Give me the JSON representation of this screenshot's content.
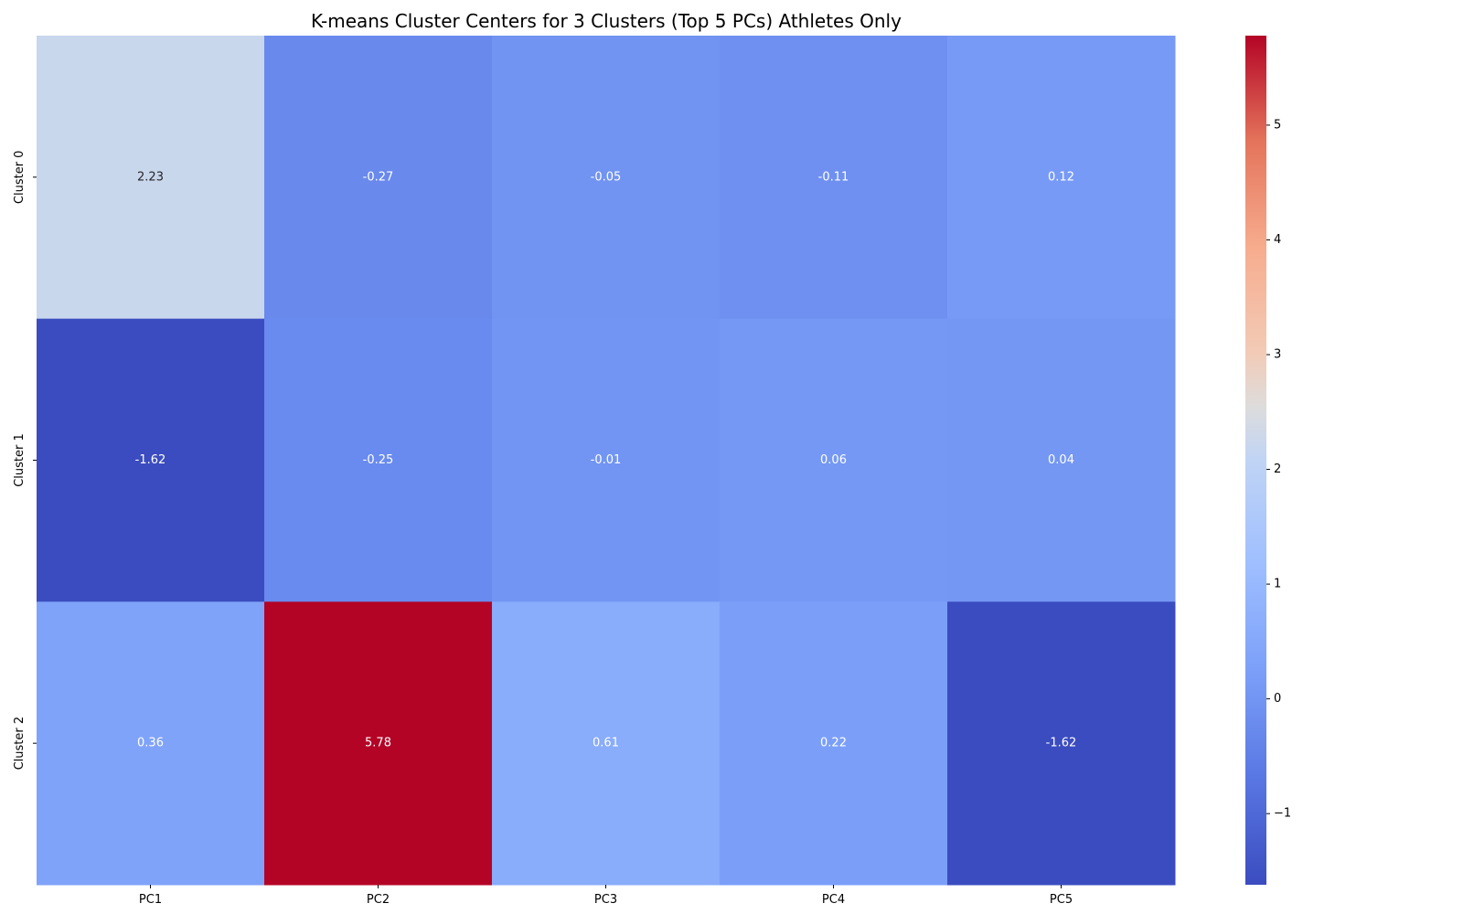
{
  "chart_data": {
    "type": "heatmap",
    "title": "K-means Cluster Centers for 3 Clusters (Top 5 PCs) Athletes Only",
    "xlabel": "",
    "ylabel": "",
    "columns": [
      "PC1",
      "PC2",
      "PC3",
      "PC4",
      "PC5"
    ],
    "rows": [
      "Cluster 0",
      "Cluster 1",
      "Cluster 2"
    ],
    "values": [
      [
        2.23,
        -0.27,
        -0.05,
        -0.11,
        0.12
      ],
      [
        -1.62,
        -0.25,
        -0.01,
        0.06,
        0.04
      ],
      [
        0.36,
        5.78,
        0.61,
        0.22,
        -1.62
      ]
    ],
    "cell_labels": [
      [
        "2.23",
        "-0.27",
        "-0.05",
        "-0.11",
        "0.12"
      ],
      [
        "-1.62",
        "-0.25",
        "-0.01",
        "0.06",
        "0.04"
      ],
      [
        "0.36",
        "5.78",
        "0.61",
        "0.22",
        "-1.62"
      ]
    ],
    "colormap": "coolwarm",
    "vmin": -1.62,
    "vmax": 5.78,
    "colorbar": {
      "ticks": [
        -1,
        0,
        1,
        2,
        3,
        4,
        5
      ],
      "tick_labels": [
        "−1",
        "0",
        "1",
        "2",
        "3",
        "4",
        "5"
      ],
      "placement": "right"
    },
    "grid": false
  }
}
